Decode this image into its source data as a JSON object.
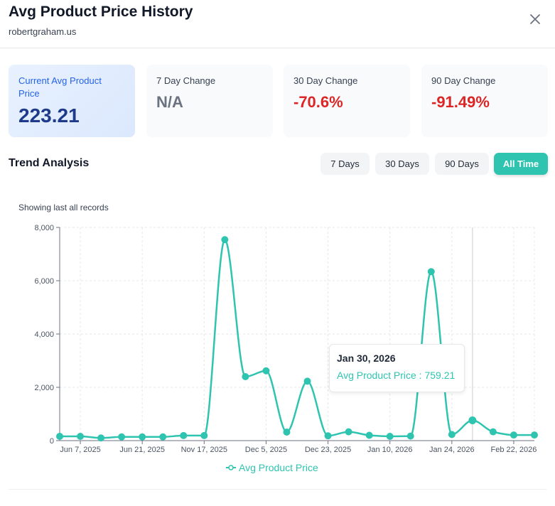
{
  "header": {
    "title": "Avg Product Price History",
    "subtitle": "robertgraham.us",
    "close_icon": "close-icon"
  },
  "cards": [
    {
      "label": "Current Avg Product Price",
      "value": "223.21"
    },
    {
      "label": "7 Day Change",
      "value": "N/A",
      "color": "#6b7280"
    },
    {
      "label": "30 Day Change",
      "value": "-70.6%",
      "color": "#dc2626"
    },
    {
      "label": "90 Day Change",
      "value": "-91.49%",
      "color": "#dc2626"
    }
  ],
  "trend": {
    "title": "Trend Analysis",
    "ranges": [
      "7 Days",
      "30 Days",
      "90 Days",
      "All Time"
    ],
    "active": "All Time"
  },
  "showing": "Showing last all records",
  "chart_data": {
    "type": "line",
    "accent": "#2ec4b0",
    "ylim": [
      0,
      8000
    ],
    "yticks": [
      "0",
      "2,000",
      "4,000",
      "6,000",
      "8,000"
    ],
    "yticks_values": [
      0,
      2000,
      4000,
      6000,
      8000
    ],
    "categories": [
      "",
      "Jun 7, 2025",
      "",
      "",
      "Jun 21, 2025",
      "",
      "",
      "Nov 17, 2025",
      "",
      "",
      "Dec 5, 2025",
      "",
      "",
      "Dec 23, 2025",
      "",
      "",
      "Jan 10, 2026",
      "",
      "",
      "Jan 24, 2026",
      "Jan 30, 2026",
      "",
      "Feb 22, 2026",
      ""
    ],
    "xtick_labels": [
      "Jun 7, 2025",
      "Jun 21, 2025",
      "Nov 17, 2025",
      "Dec 5, 2025",
      "Dec 23, 2025",
      "Jan 10, 2026",
      "Jan 24, 2026",
      "Feb 22, 2026"
    ],
    "series": [
      {
        "name": "Avg Product Price",
        "values": [
          160,
          160,
          100,
          140,
          140,
          140,
          190,
          190,
          7540,
          2400,
          2620,
          320,
          2230,
          180,
          330,
          200,
          160,
          170,
          6340,
          230,
          759.21,
          330,
          210,
          210
        ]
      }
    ],
    "grid": true,
    "legend": "bottom",
    "tooltip": {
      "date": "Jan 30, 2026",
      "text": "Avg Product Price : 759.21",
      "index": 20
    }
  }
}
